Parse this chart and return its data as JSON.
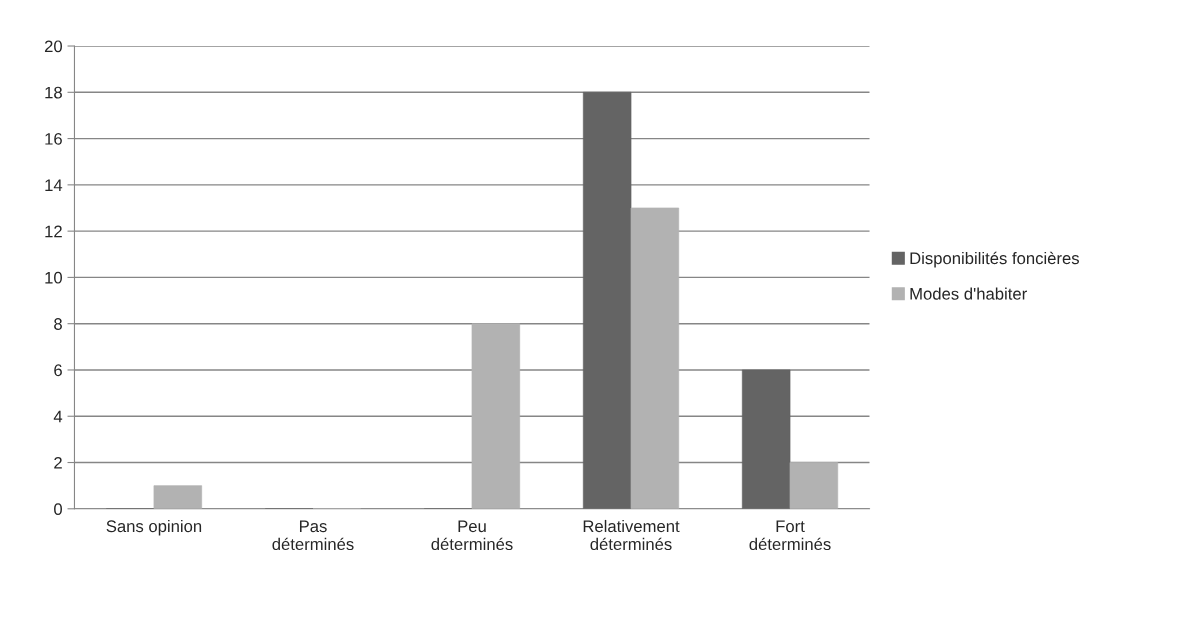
{
  "chart_data": {
    "type": "bar",
    "categories": [
      "Sans opinion",
      "Pas\ndéterminés",
      "Peu\ndéterminés",
      "Relativement\ndéterminés",
      "Fort\ndéterminés"
    ],
    "series": [
      {
        "name": "Disponibilités foncières",
        "color": "#646464",
        "values": [
          0,
          0,
          0,
          18,
          6
        ]
      },
      {
        "name": "Modes d'habiter",
        "color": "#b2b2b2",
        "values": [
          1,
          0,
          8,
          13,
          2
        ]
      }
    ],
    "ylim": [
      0,
      20
    ],
    "yticks": [
      0,
      2,
      4,
      6,
      8,
      10,
      12,
      14,
      16,
      18,
      20
    ],
    "grid": "y",
    "legend": "right"
  }
}
